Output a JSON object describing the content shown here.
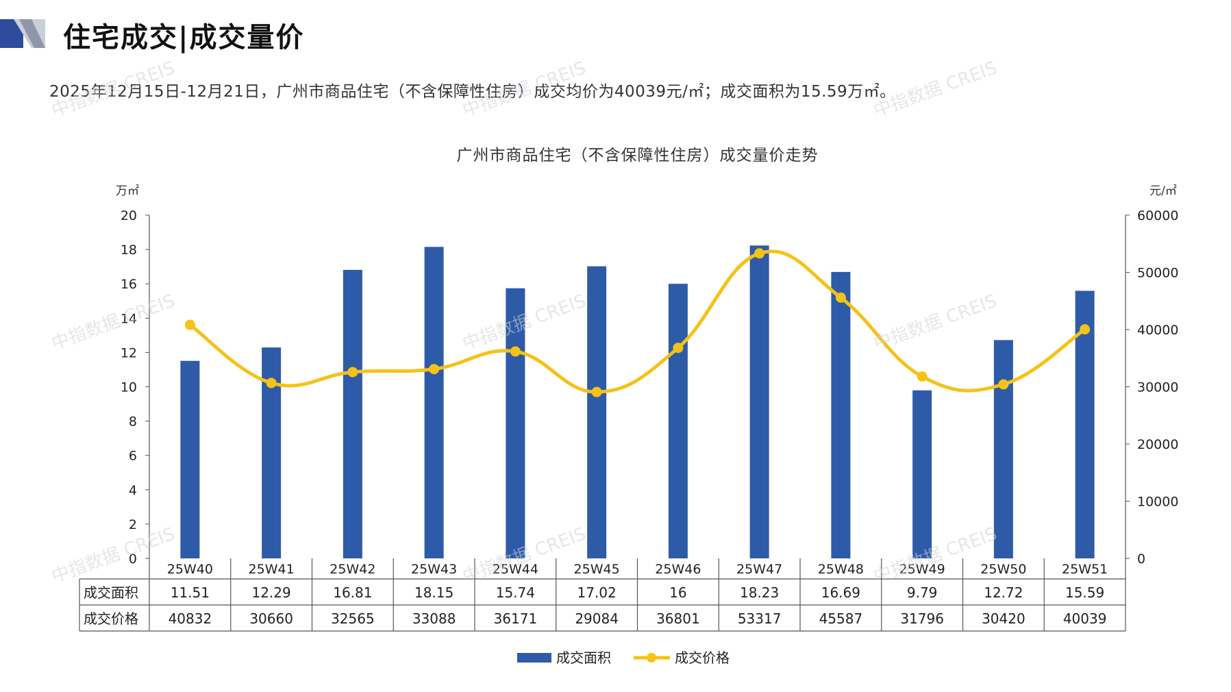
{
  "page": {
    "title": "住宅成交|成交量价",
    "summary": "2025年12月15日-12月21日，广州市商品住宅（不含保障性住房）成交均价为40039元/㎡；成交面积为15.59万㎡。"
  },
  "watermark": "中指数据 CREIS",
  "colors": {
    "bar": "#2E5BA8",
    "line": "#F5C217",
    "axis": "#555555",
    "table_border": "#555555",
    "logo_dark": "#2E4C9E",
    "logo_light": "#C9CEDA"
  },
  "chart_data": {
    "type": "bar",
    "title": "广州市商品住宅（不含保障性住房）成交量价走势",
    "categories": [
      "25W40",
      "25W41",
      "25W42",
      "25W43",
      "25W44",
      "25W45",
      "25W46",
      "25W47",
      "25W48",
      "25W49",
      "25W50",
      "25W51"
    ],
    "series": [
      {
        "name": "成交面积",
        "type": "bar",
        "axis": "left",
        "values": [
          11.51,
          12.29,
          16.81,
          18.15,
          15.74,
          17.02,
          16,
          18.23,
          16.69,
          9.79,
          12.72,
          15.59
        ],
        "labels": [
          "11.51",
          "12.29",
          "16.81",
          "18.15",
          "15.74",
          "17.02",
          "16",
          "18.23",
          "16.69",
          "9.79",
          "12.72",
          "15.59"
        ]
      },
      {
        "name": "成交价格",
        "type": "line",
        "axis": "right",
        "values": [
          40832,
          30660,
          32565,
          33088,
          36171,
          29084,
          36801,
          53317,
          45587,
          31796,
          30420,
          40039
        ],
        "labels": [
          "40832",
          "30660",
          "32565",
          "33088",
          "36171",
          "29084",
          "36801",
          "53317",
          "45587",
          "31796",
          "30420",
          "40039"
        ]
      }
    ],
    "y_left": {
      "unit": "万㎡",
      "min": 0,
      "max": 20,
      "ticks": [
        0,
        2,
        4,
        6,
        8,
        10,
        12,
        14,
        16,
        18,
        20
      ]
    },
    "y_right": {
      "unit": "元/㎡",
      "min": 0,
      "max": 60000,
      "ticks": [
        0,
        10000,
        20000,
        30000,
        40000,
        50000,
        60000
      ]
    },
    "legend_position": "bottom-center",
    "data_table": true
  }
}
